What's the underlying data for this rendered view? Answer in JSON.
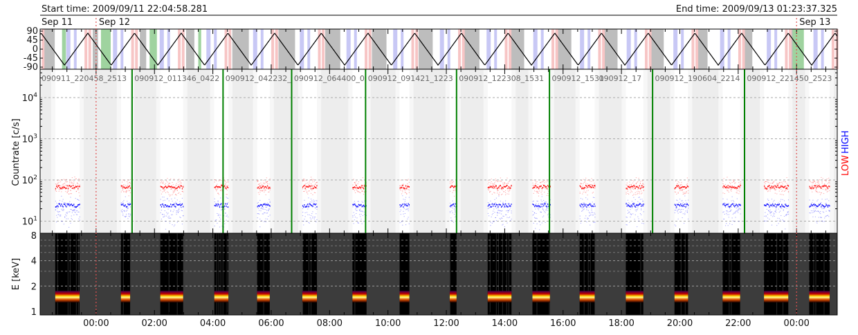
{
  "header": {
    "start_time": "Start time: 2009/09/11 22:04:58.281",
    "end_time": "End time: 2009/09/13 01:23:37.325"
  },
  "day_labels": [
    {
      "label": "Sep 11",
      "time": "2009/09/11 22:05"
    },
    {
      "label": "Sep 12",
      "time": "2009/09/12 00:00"
    },
    {
      "label": "Sep 13",
      "time": "2009/09/13 00:00"
    }
  ],
  "colors": {
    "night": "#bdbdbd",
    "saa": "#f7c5c5",
    "attenuator": "#c8c8f5",
    "flare": "#9fd39f",
    "file_boundary": "#008000",
    "low_channel": "#ff0000",
    "high_channel": "#0000ff",
    "day_marker": "#e05050"
  },
  "chart_data": [
    {
      "type": "line",
      "title": "",
      "yticks": [
        "90",
        "45",
        "0",
        "-45",
        "-90"
      ],
      "ylim": [
        -90,
        90
      ],
      "orbit_period_min": 96,
      "first_peak": "2009/09/11 23:43",
      "amplitude": 80,
      "night_intervals": [
        [
          "2009/09/11 22:13",
          "2009/09/11 22:35"
        ],
        [
          "2009/09/11 23:53",
          "2009/09/12 00:04"
        ],
        [
          "2009/09/12 01:30",
          "2009/09/12 01:43"
        ],
        [
          "2009/09/12 03:05",
          "2009/09/12 03:22"
        ],
        [
          "2009/09/12 04:40",
          "2009/09/12 05:14"
        ],
        [
          "2009/09/12 06:15",
          "2009/09/12 06:49"
        ],
        [
          "2009/09/12 07:51",
          "2009/09/12 08:22"
        ],
        [
          "2009/09/12 09:27",
          "2009/09/12 09:57"
        ],
        [
          "2009/09/12 11:03",
          "2009/09/12 11:32"
        ],
        [
          "2009/09/12 12:36",
          "2009/09/12 13:08"
        ],
        [
          "2009/09/12 14:13",
          "2009/09/12 14:40"
        ],
        [
          "2009/09/12 15:48",
          "2009/09/12 16:17"
        ],
        [
          "2009/09/12 17:24",
          "2009/09/12 17:52"
        ],
        [
          "2009/09/12 18:59",
          "2009/09/12 19:27"
        ],
        [
          "2009/09/12 20:34",
          "2009/09/12 20:57"
        ],
        [
          "2009/09/12 22:11",
          "2009/09/12 22:29"
        ],
        [
          "2009/09/12 23:46",
          "2009/09/13 00:00"
        ]
      ],
      "flare_intervals": [
        [
          "2009/09/11 22:50",
          "2009/09/11 22:58"
        ],
        [
          "2009/09/12 00:10",
          "2009/09/12 00:30"
        ],
        [
          "2009/09/12 01:50",
          "2009/09/12 02:05"
        ],
        [
          "2009/09/12 03:30",
          "2009/09/12 03:36"
        ],
        [
          "2009/09/12 23:52",
          "2009/09/13 00:15"
        ]
      ]
    },
    {
      "type": "scatter",
      "ylabel": "Countrate [c/s]",
      "yscale": "log",
      "ylim": [
        5,
        44000
      ],
      "yticks": [
        {
          "base": "10",
          "exp": "1",
          "value": 10
        },
        {
          "base": "10",
          "exp": "2",
          "value": 100
        },
        {
          "base": "10",
          "exp": "3",
          "value": 1000
        },
        {
          "base": "10",
          "exp": "4",
          "value": 10000
        }
      ],
      "grid": true,
      "channel_labels": {
        "low": "LOW",
        "high": "HIGH"
      },
      "series": [
        {
          "name": "LOW",
          "level": 70
        },
        {
          "name": "HIGH",
          "level": 25
        }
      ],
      "observation_intervals": [
        [
          "2009/09/11 22:36",
          "2009/09/11 23:26"
        ],
        [
          "2009/09/12 00:51",
          "2009/09/12 01:10"
        ],
        [
          "2009/09/12 02:12",
          "2009/09/12 02:59"
        ],
        [
          "2009/09/12 04:03",
          "2009/09/12 04:32"
        ],
        [
          "2009/09/12 05:31",
          "2009/09/12 05:57"
        ],
        [
          "2009/09/12 07:04",
          "2009/09/12 07:34"
        ],
        [
          "2009/09/12 08:47",
          "2009/09/12 09:16"
        ],
        [
          "2009/09/12 10:24",
          "2009/09/12 10:44"
        ],
        [
          "2009/09/12 12:07",
          "2009/09/12 12:21"
        ],
        [
          "2009/09/12 13:25",
          "2009/09/12 14:14"
        ],
        [
          "2009/09/12 14:57",
          "2009/09/12 15:33"
        ],
        [
          "2009/09/12 16:34",
          "2009/09/12 17:05"
        ],
        [
          "2009/09/12 18:09",
          "2009/09/12 18:45"
        ],
        [
          "2009/09/12 19:49",
          "2009/09/12 20:17"
        ],
        [
          "2009/09/12 21:28",
          "2009/09/12 22:04"
        ],
        [
          "2009/09/12 22:53",
          "2009/09/12 23:43"
        ],
        [
          "2009/09/13 00:26",
          "2009/09/13 01:08"
        ]
      ],
      "file_boundaries": [
        "2009/09/12 01:14",
        "2009/09/12 04:21",
        "2009/09/12 06:42",
        "2009/09/12 09:14",
        "2009/09/12 12:21",
        "2009/09/12 15:32",
        "2009/09/12 19:04",
        "2009/09/12 22:13"
      ],
      "file_labels": [
        {
          "label": "090911_220458_2513",
          "time": "2009/09/11 22:05"
        },
        {
          "label": "090912_011346_0422",
          "time": "2009/09/12 01:16"
        },
        {
          "label": "090912_042232_",
          "time": "2009/09/12 04:23"
        },
        {
          "label": "090912_064400_0",
          "time": "2009/09/12 06:44"
        },
        {
          "label": "090912_091421_1223",
          "time": "2009/09/12 09:16"
        },
        {
          "label": "090912_122308_1531",
          "time": "2009/09/12 12:23"
        },
        {
          "label": "090912_1531",
          "time": "2009/09/12 15:34"
        },
        {
          "label": "090912_17",
          "time": "2009/09/12 17:11"
        },
        {
          "label": "090912_190604_2214",
          "time": "2009/09/12 19:06"
        },
        {
          "label": "090912_221450_2523",
          "time": "2009/09/12 22:15"
        }
      ]
    },
    {
      "type": "heatmap",
      "ylabel": "E [keV]",
      "yscale": "log",
      "ylim": [
        1,
        8
      ],
      "yticks": [
        "1",
        "2",
        "4",
        "8"
      ],
      "peak_energy_keV": 1.5,
      "xticks": [
        "00:00",
        "02:00",
        "04:00",
        "06:00",
        "08:00",
        "10:00",
        "12:00",
        "14:00",
        "16:00",
        "18:00",
        "20:00",
        "22:00",
        "00:00"
      ]
    }
  ]
}
